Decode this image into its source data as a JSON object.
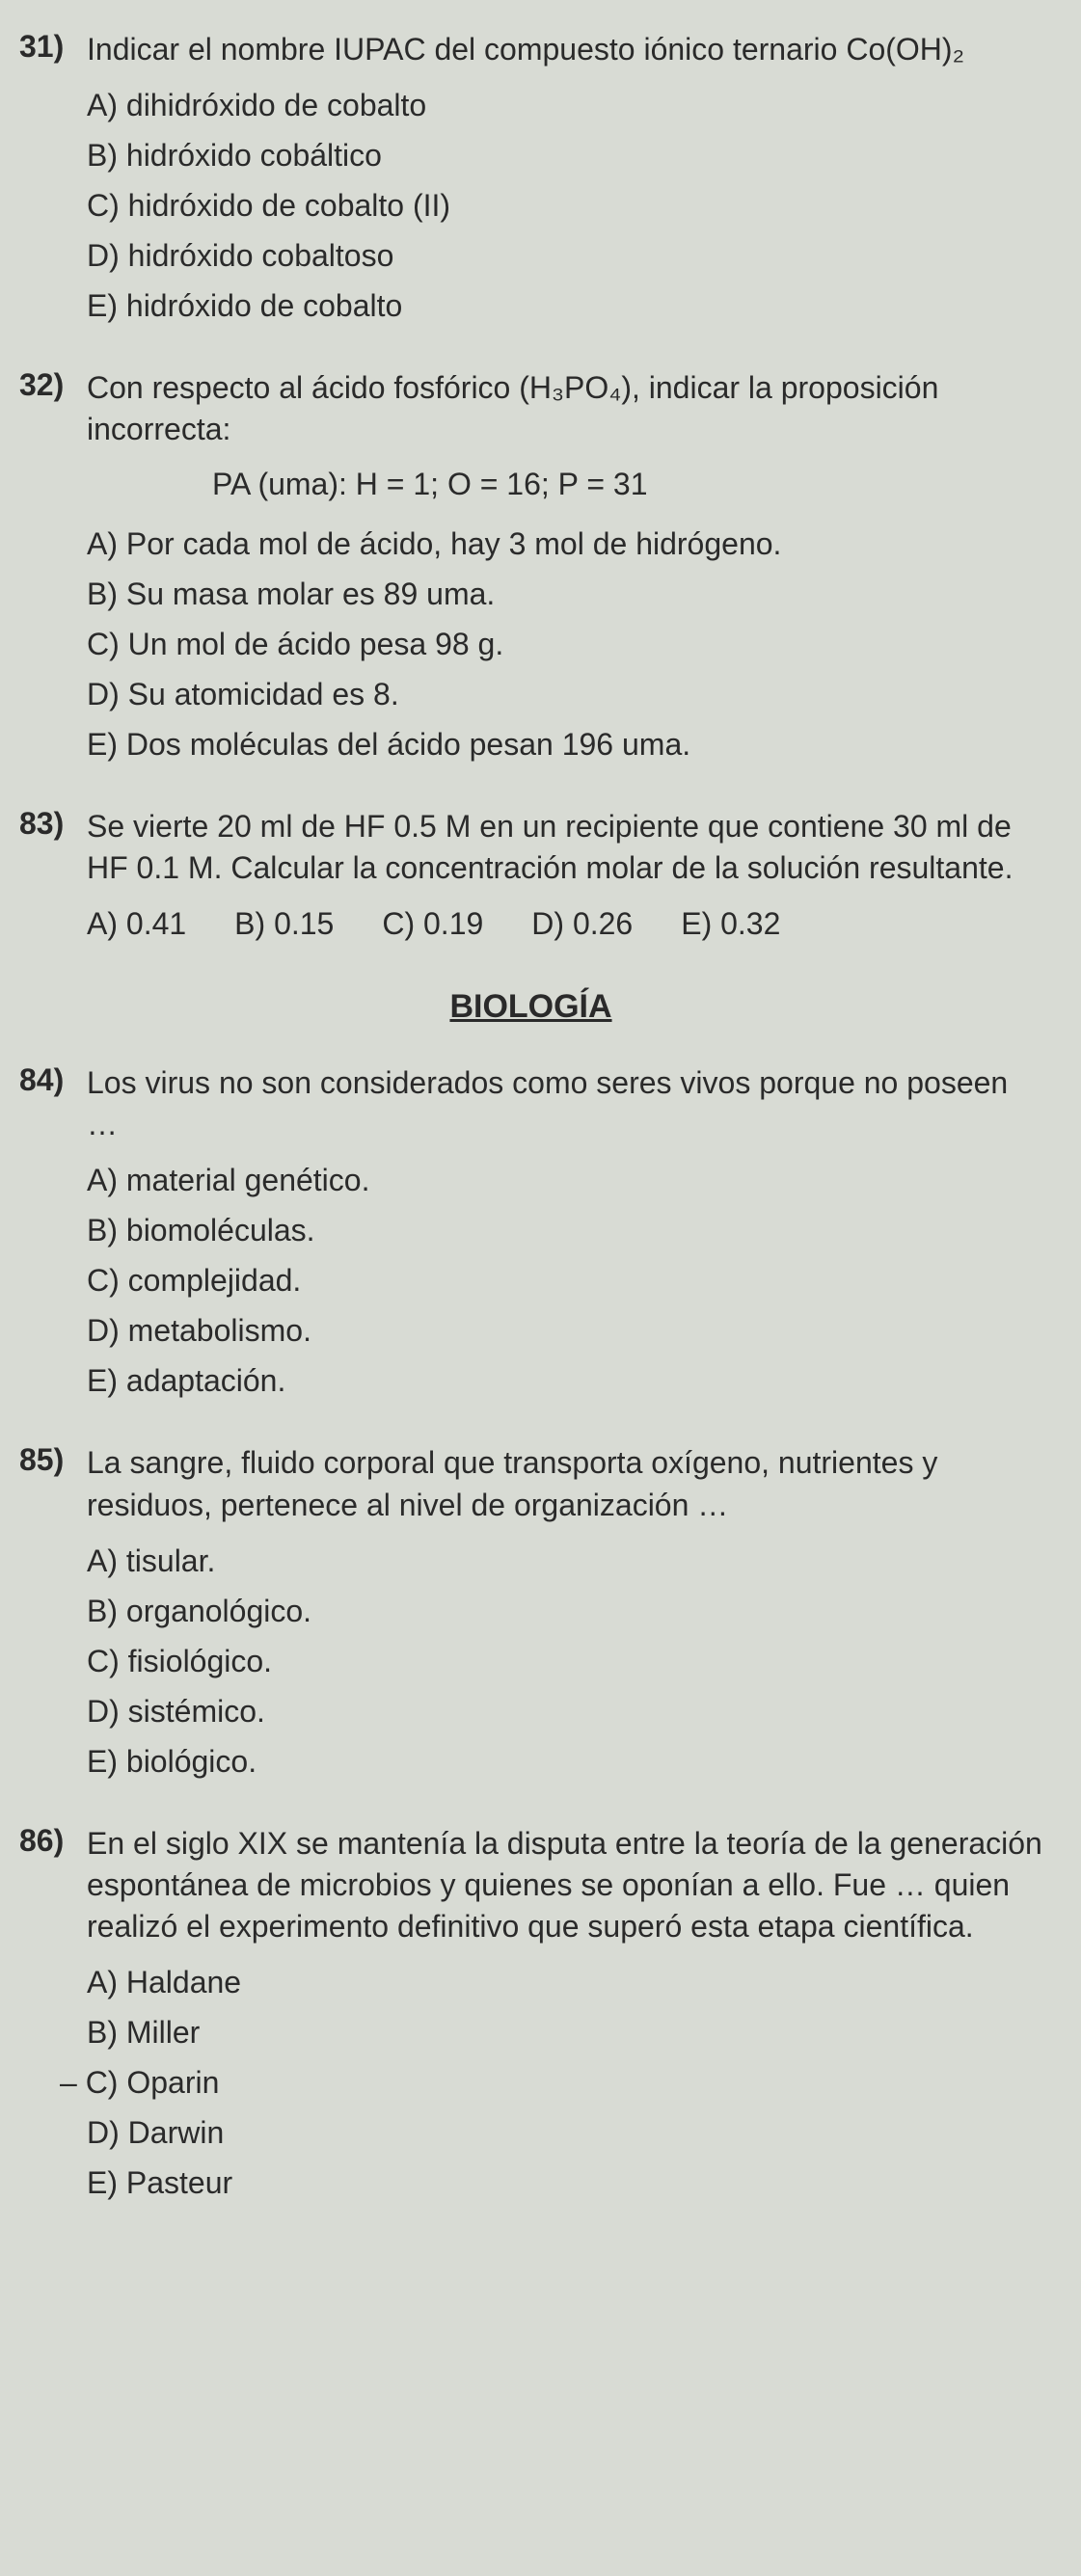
{
  "questions": [
    {
      "number": "31)",
      "text": "Indicar el nombre IUPAC del compuesto iónico ternario Co(OH)₂",
      "options": [
        "A) dihidróxido de cobalto",
        "B) hidróxido cobáltico",
        "C) hidróxido de cobalto (II)",
        "D) hidróxido cobaltoso",
        "E) hidróxido de cobalto"
      ]
    },
    {
      "number": "32)",
      "text": "Con respecto al ácido fosfórico (H₃PO₄), indicar la proposición incorrecta:",
      "formula": "PA (uma): H = 1; O = 16; P = 31",
      "options": [
        "A) Por cada mol de ácido, hay 3 mol de hidrógeno.",
        "B) Su masa molar es 89 uma.",
        "C) Un mol de ácido pesa 98 g.",
        "D) Su atomicidad es 8.",
        "E) Dos moléculas del ácido pesan 196 uma."
      ]
    },
    {
      "number": "83)",
      "text": "Se vierte 20 ml de HF 0.5 M en un recipiente que contiene 30 ml de HF 0.1 M. Calcular la concentración molar de la solución resultante.",
      "row_options": [
        "A) 0.41",
        "B) 0.15",
        "C) 0.19",
        "D) 0.26",
        "E) 0.32"
      ]
    }
  ],
  "section_title": "BIOLOGÍA",
  "bio_questions": [
    {
      "number": "84)",
      "text": "Los virus no son considerados como seres vivos porque no poseen …",
      "options": [
        "A) material genético.",
        "B) biomoléculas.",
        "C) complejidad.",
        "D) metabolismo.",
        "E) adaptación."
      ]
    },
    {
      "number": "85)",
      "text": "La sangre, fluido corporal que transporta oxígeno, nutrientes y residuos, pertenece al nivel de organización …",
      "options": [
        "A) tisular.",
        "B) organológico.",
        "C) fisiológico.",
        "D) sistémico.",
        "E) biológico."
      ]
    },
    {
      "number": "86)",
      "text": "En el siglo XIX se mantenía la disputa entre la teoría de la generación espontánea de microbios y quienes se oponían a ello. Fue … quien realizó el experimento definitivo que superó esta etapa científica.",
      "options": [
        "A) Haldane",
        "B) Miller",
        "C) Oparin",
        "D) Darwin",
        "E) Pasteur"
      ],
      "prefix_c": "– "
    }
  ]
}
